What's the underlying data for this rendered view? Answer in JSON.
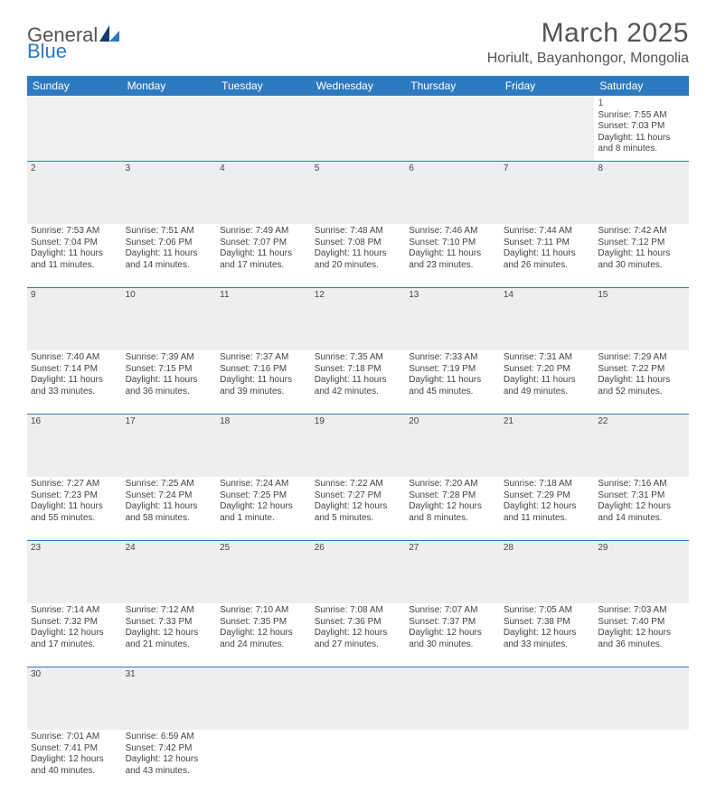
{
  "logo": {
    "text1": "General",
    "text2": "Blue"
  },
  "title": "March 2025",
  "location": "Horiult, Bayanhongor, Mongolia",
  "colors": {
    "header_bg": "#2e7ac0",
    "header_text": "#ffffff",
    "daynum_bg": "#eeeeee",
    "border": "#2e7ac0",
    "body_text": "#444444",
    "title_text": "#555555"
  },
  "weekdays": [
    "Sunday",
    "Monday",
    "Tuesday",
    "Wednesday",
    "Thursday",
    "Friday",
    "Saturday"
  ],
  "weeks": [
    [
      null,
      null,
      null,
      null,
      null,
      null,
      {
        "n": "1",
        "sr": "7:55 AM",
        "ss": "7:03 PM",
        "dl": "11 hours and 8 minutes."
      }
    ],
    [
      {
        "n": "2",
        "sr": "7:53 AM",
        "ss": "7:04 PM",
        "dl": "11 hours and 11 minutes."
      },
      {
        "n": "3",
        "sr": "7:51 AM",
        "ss": "7:06 PM",
        "dl": "11 hours and 14 minutes."
      },
      {
        "n": "4",
        "sr": "7:49 AM",
        "ss": "7:07 PM",
        "dl": "11 hours and 17 minutes."
      },
      {
        "n": "5",
        "sr": "7:48 AM",
        "ss": "7:08 PM",
        "dl": "11 hours and 20 minutes."
      },
      {
        "n": "6",
        "sr": "7:46 AM",
        "ss": "7:10 PM",
        "dl": "11 hours and 23 minutes."
      },
      {
        "n": "7",
        "sr": "7:44 AM",
        "ss": "7:11 PM",
        "dl": "11 hours and 26 minutes."
      },
      {
        "n": "8",
        "sr": "7:42 AM",
        "ss": "7:12 PM",
        "dl": "11 hours and 30 minutes."
      }
    ],
    [
      {
        "n": "9",
        "sr": "7:40 AM",
        "ss": "7:14 PM",
        "dl": "11 hours and 33 minutes."
      },
      {
        "n": "10",
        "sr": "7:39 AM",
        "ss": "7:15 PM",
        "dl": "11 hours and 36 minutes."
      },
      {
        "n": "11",
        "sr": "7:37 AM",
        "ss": "7:16 PM",
        "dl": "11 hours and 39 minutes."
      },
      {
        "n": "12",
        "sr": "7:35 AM",
        "ss": "7:18 PM",
        "dl": "11 hours and 42 minutes."
      },
      {
        "n": "13",
        "sr": "7:33 AM",
        "ss": "7:19 PM",
        "dl": "11 hours and 45 minutes."
      },
      {
        "n": "14",
        "sr": "7:31 AM",
        "ss": "7:20 PM",
        "dl": "11 hours and 49 minutes."
      },
      {
        "n": "15",
        "sr": "7:29 AM",
        "ss": "7:22 PM",
        "dl": "11 hours and 52 minutes."
      }
    ],
    [
      {
        "n": "16",
        "sr": "7:27 AM",
        "ss": "7:23 PM",
        "dl": "11 hours and 55 minutes."
      },
      {
        "n": "17",
        "sr": "7:25 AM",
        "ss": "7:24 PM",
        "dl": "11 hours and 58 minutes."
      },
      {
        "n": "18",
        "sr": "7:24 AM",
        "ss": "7:25 PM",
        "dl": "12 hours and 1 minute."
      },
      {
        "n": "19",
        "sr": "7:22 AM",
        "ss": "7:27 PM",
        "dl": "12 hours and 5 minutes."
      },
      {
        "n": "20",
        "sr": "7:20 AM",
        "ss": "7:28 PM",
        "dl": "12 hours and 8 minutes."
      },
      {
        "n": "21",
        "sr": "7:18 AM",
        "ss": "7:29 PM",
        "dl": "12 hours and 11 minutes."
      },
      {
        "n": "22",
        "sr": "7:16 AM",
        "ss": "7:31 PM",
        "dl": "12 hours and 14 minutes."
      }
    ],
    [
      {
        "n": "23",
        "sr": "7:14 AM",
        "ss": "7:32 PM",
        "dl": "12 hours and 17 minutes."
      },
      {
        "n": "24",
        "sr": "7:12 AM",
        "ss": "7:33 PM",
        "dl": "12 hours and 21 minutes."
      },
      {
        "n": "25",
        "sr": "7:10 AM",
        "ss": "7:35 PM",
        "dl": "12 hours and 24 minutes."
      },
      {
        "n": "26",
        "sr": "7:08 AM",
        "ss": "7:36 PM",
        "dl": "12 hours and 27 minutes."
      },
      {
        "n": "27",
        "sr": "7:07 AM",
        "ss": "7:37 PM",
        "dl": "12 hours and 30 minutes."
      },
      {
        "n": "28",
        "sr": "7:05 AM",
        "ss": "7:38 PM",
        "dl": "12 hours and 33 minutes."
      },
      {
        "n": "29",
        "sr": "7:03 AM",
        "ss": "7:40 PM",
        "dl": "12 hours and 36 minutes."
      }
    ],
    [
      {
        "n": "30",
        "sr": "7:01 AM",
        "ss": "7:41 PM",
        "dl": "12 hours and 40 minutes."
      },
      {
        "n": "31",
        "sr": "6:59 AM",
        "ss": "7:42 PM",
        "dl": "12 hours and 43 minutes."
      },
      null,
      null,
      null,
      null,
      null
    ]
  ],
  "labels": {
    "sunrise": "Sunrise:",
    "sunset": "Sunset:",
    "daylight": "Daylight:"
  }
}
